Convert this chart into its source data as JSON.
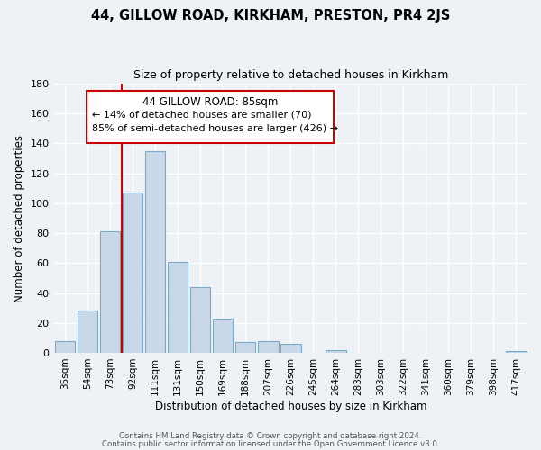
{
  "title": "44, GILLOW ROAD, KIRKHAM, PRESTON, PR4 2JS",
  "subtitle": "Size of property relative to detached houses in Kirkham",
  "xlabel": "Distribution of detached houses by size in Kirkham",
  "ylabel": "Number of detached properties",
  "bar_color": "#c8d8e8",
  "bar_edge_color": "#7aaac8",
  "vline_color": "#cc0000",
  "categories": [
    "35sqm",
    "54sqm",
    "73sqm",
    "92sqm",
    "111sqm",
    "131sqm",
    "150sqm",
    "169sqm",
    "188sqm",
    "207sqm",
    "226sqm",
    "245sqm",
    "264sqm",
    "283sqm",
    "303sqm",
    "322sqm",
    "341sqm",
    "360sqm",
    "379sqm",
    "398sqm",
    "417sqm"
  ],
  "values": [
    8,
    28,
    81,
    107,
    135,
    61,
    44,
    23,
    7,
    8,
    6,
    0,
    2,
    0,
    0,
    0,
    0,
    0,
    0,
    0,
    1
  ],
  "ylim": [
    0,
    180
  ],
  "yticks": [
    0,
    20,
    40,
    60,
    80,
    100,
    120,
    140,
    160,
    180
  ],
  "annotation_title": "44 GILLOW ROAD: 85sqm",
  "annotation_line1": "← 14% of detached houses are smaller (70)",
  "annotation_line2": "85% of semi-detached houses are larger (426) →",
  "footer_line1": "Contains HM Land Registry data © Crown copyright and database right 2024.",
  "footer_line2": "Contains public sector information licensed under the Open Government Licence v3.0.",
  "background_color": "#eef2f7",
  "plot_background": "#eef2f7",
  "grid_color": "#ffffff",
  "title_fontsize": 10.5,
  "subtitle_fontsize": 9,
  "bar_label_fontsize": 7.5,
  "ylabel_fontsize": 8.5,
  "xlabel_fontsize": 8.5
}
